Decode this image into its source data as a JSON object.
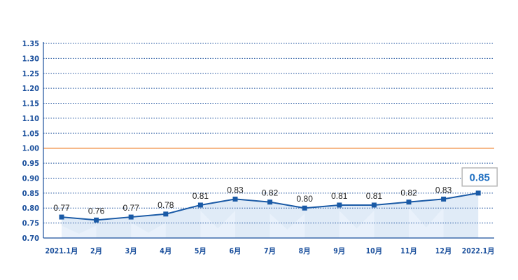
{
  "chart_data": {
    "type": "line",
    "categories": [
      "2021.1月",
      "2月",
      "3月",
      "4月",
      "5月",
      "6月",
      "7月",
      "8月",
      "9月",
      "10月",
      "11月",
      "12月",
      "2022.1月"
    ],
    "values": [
      0.77,
      0.76,
      0.77,
      0.78,
      0.81,
      0.83,
      0.82,
      0.8,
      0.81,
      0.81,
      0.82,
      0.83,
      0.85
    ],
    "data_labels": [
      "0.77",
      "0.76",
      "0.77",
      "0.78",
      "0.81",
      "0.83",
      "0.82",
      "0.80",
      "0.81",
      "0.81",
      "0.82",
      "0.83",
      "0.85"
    ],
    "y_ticks": [
      "0.70",
      "0.75",
      "0.80",
      "0.85",
      "0.90",
      "0.95",
      "1.00",
      "1.05",
      "1.10",
      "1.15",
      "1.20",
      "1.25",
      "1.30",
      "1.35"
    ],
    "ylim": [
      0.7,
      1.35
    ],
    "reference_line": 1.0,
    "grid": "horizontal-dotted",
    "title": "",
    "xlabel": "",
    "ylabel": "",
    "highlight_index": 12
  },
  "colors": {
    "line": "#1a5aa6",
    "marker": "#1a5aa6",
    "axis": "#1a4f9c",
    "grid": "#1a4f9c",
    "reference": "#f08a3c",
    "fill": "#dbe8f6",
    "fill_alt": "#eaf2fb",
    "callout_border": "#b8b8b8",
    "callout_text": "#1f6fc1"
  }
}
